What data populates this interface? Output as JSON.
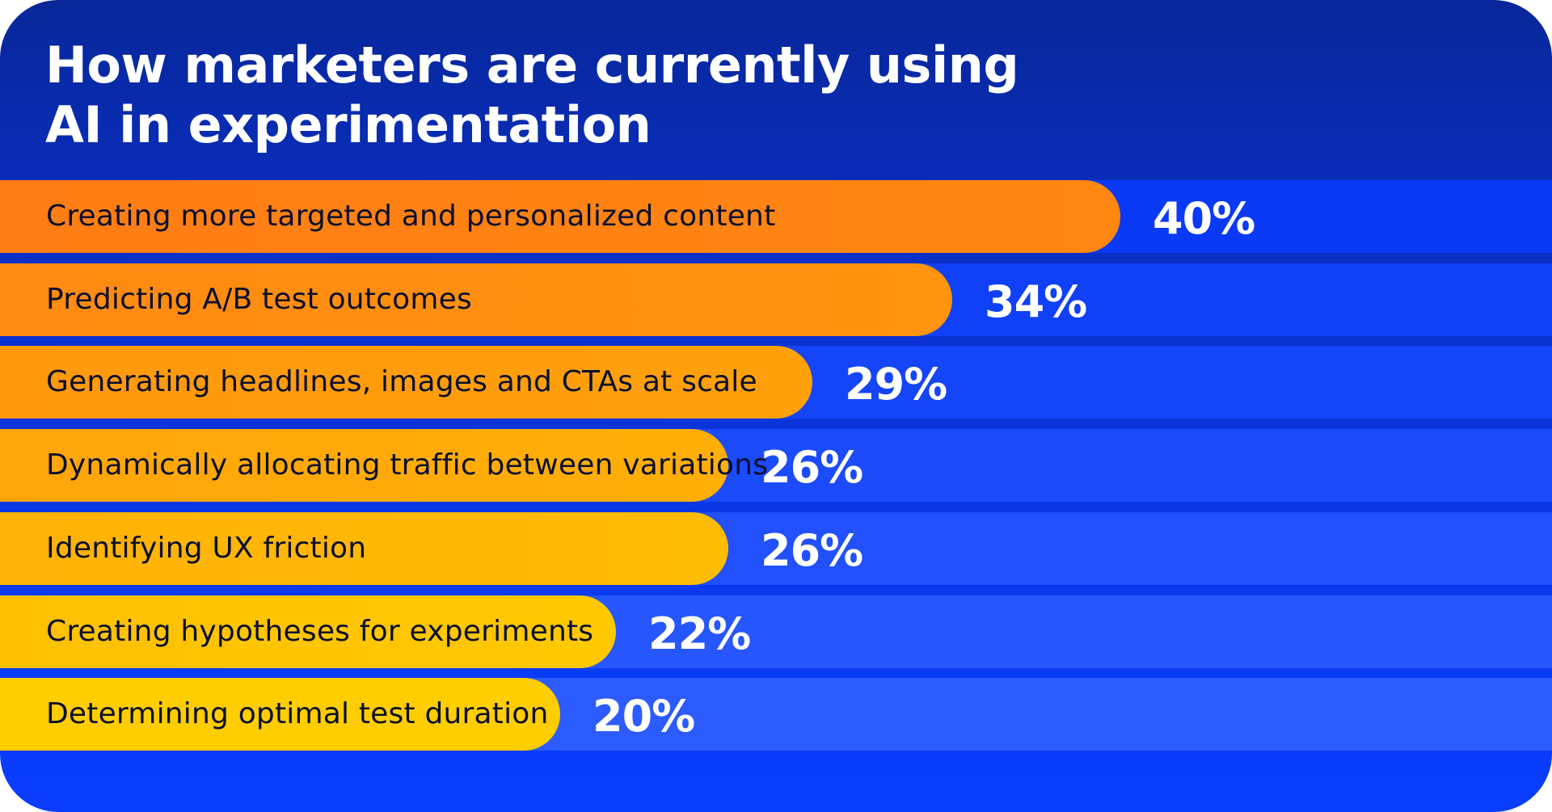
{
  "title": "How marketers are currently using\nAI in experimentation",
  "colors": {
    "background": "#0a34e0",
    "bar_start": "#ff7d14",
    "bar_end": "#ffcd00",
    "track_start": "#0a3af5",
    "track_end": "#2c5bff"
  },
  "chart_data": {
    "type": "bar",
    "orientation": "horizontal",
    "title": "How marketers are currently using\nAI in experimentation",
    "unit": "%",
    "xlim": [
      0,
      46
    ],
    "categories": [
      "Creating more targeted and personalized content",
      "Predicting A/B test outcomes",
      "Generating headlines, images and CTAs at scale",
      "Dynamically allocating traffic between variations",
      "Identifying UX friction",
      "Creating hypotheses for experiments",
      "Determining optimal test duration"
    ],
    "values": [
      40,
      34,
      29,
      26,
      26,
      22,
      20
    ],
    "value_labels": [
      "40%",
      "34%",
      "29%",
      "26%",
      "26%",
      "22%",
      "20%"
    ]
  }
}
